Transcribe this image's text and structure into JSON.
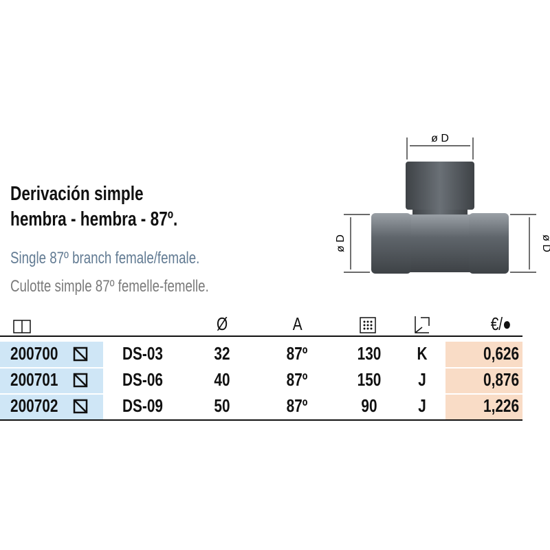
{
  "header": {
    "title_lines": [
      "Derivación simple",
      "hembra - hembra - 87º."
    ],
    "subtitle_en": "Single 87º branch female/female.",
    "subtitle_fr": "Culotte simple 87º femelle-femelle."
  },
  "diagram": {
    "labels": [
      "ø D",
      "ø D",
      "ø D"
    ]
  },
  "table": {
    "columns": [
      "Ø",
      "A",
      "€/●"
    ],
    "rows": [
      [
        "200700",
        "DS-03",
        "32",
        "87º",
        "130",
        "K",
        "0,626"
      ],
      [
        "200701",
        "DS-06",
        "40",
        "87º",
        "150",
        "J",
        "0,876"
      ],
      [
        "200702",
        "DS-09",
        "50",
        "87º",
        "90",
        "J",
        "1,226"
      ]
    ]
  }
}
